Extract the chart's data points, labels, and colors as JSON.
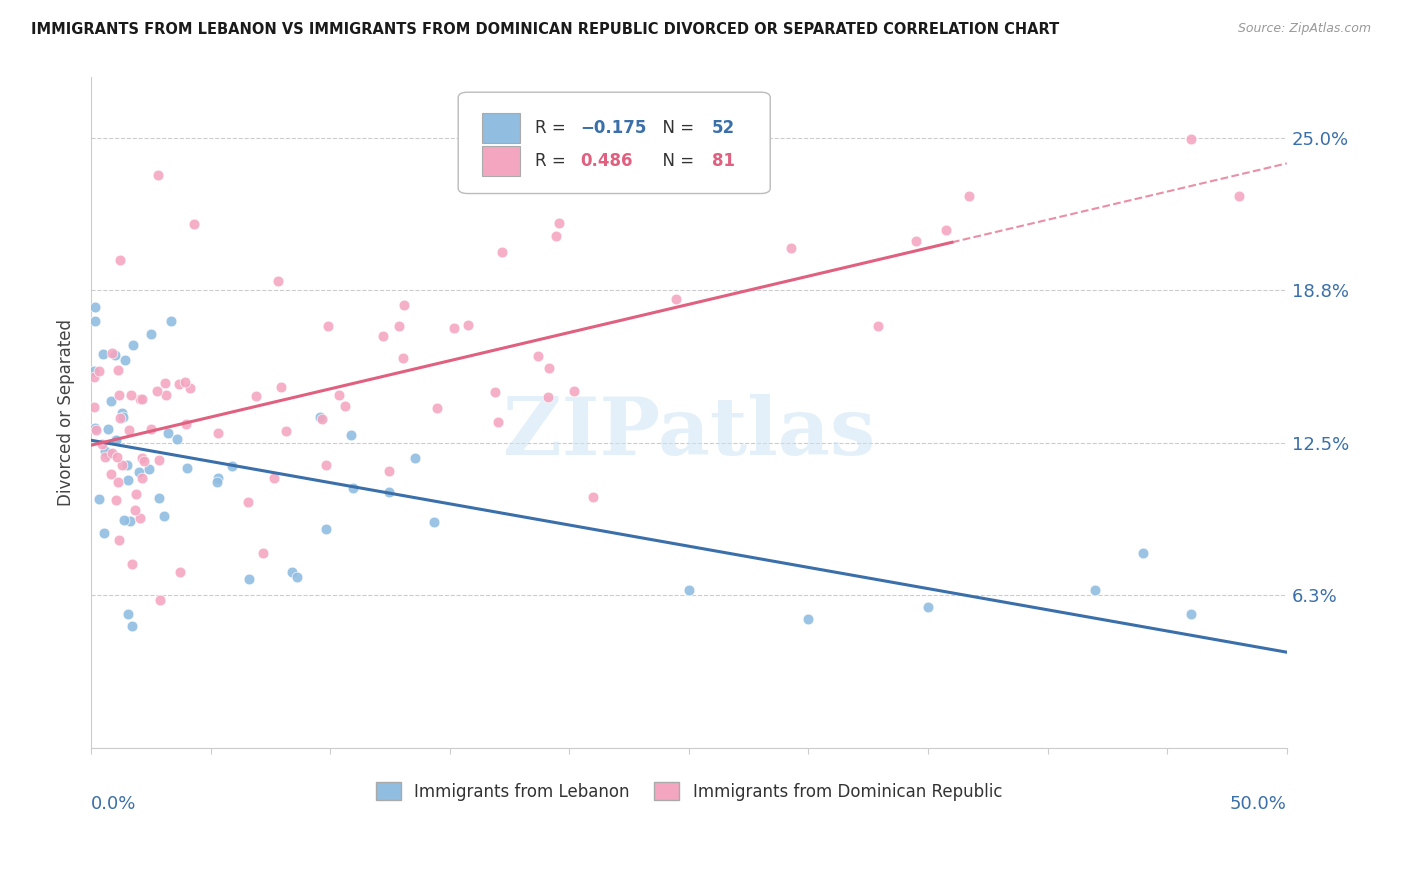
{
  "title": "IMMIGRANTS FROM LEBANON VS IMMIGRANTS FROM DOMINICAN REPUBLIC DIVORCED OR SEPARATED CORRELATION CHART",
  "source": "Source: ZipAtlas.com",
  "ylabel": "Divorced or Separated",
  "right_yticklabels": [
    "",
    "6.3%",
    "12.5%",
    "18.8%",
    "25.0%"
  ],
  "right_ytick_vals": [
    0.0,
    0.063,
    0.125,
    0.188,
    0.25
  ],
  "xmin": 0.0,
  "xmax": 0.5,
  "ymin": 0.0,
  "ymax": 0.275,
  "color_blue": "#90bde0",
  "color_pink": "#f4a6c0",
  "color_blue_line": "#3a6faa",
  "color_pink_line": "#e06080",
  "color_blue_dark": "#3a6faa",
  "color_pink_dark": "#e06080",
  "watermark": "ZIPatlas"
}
